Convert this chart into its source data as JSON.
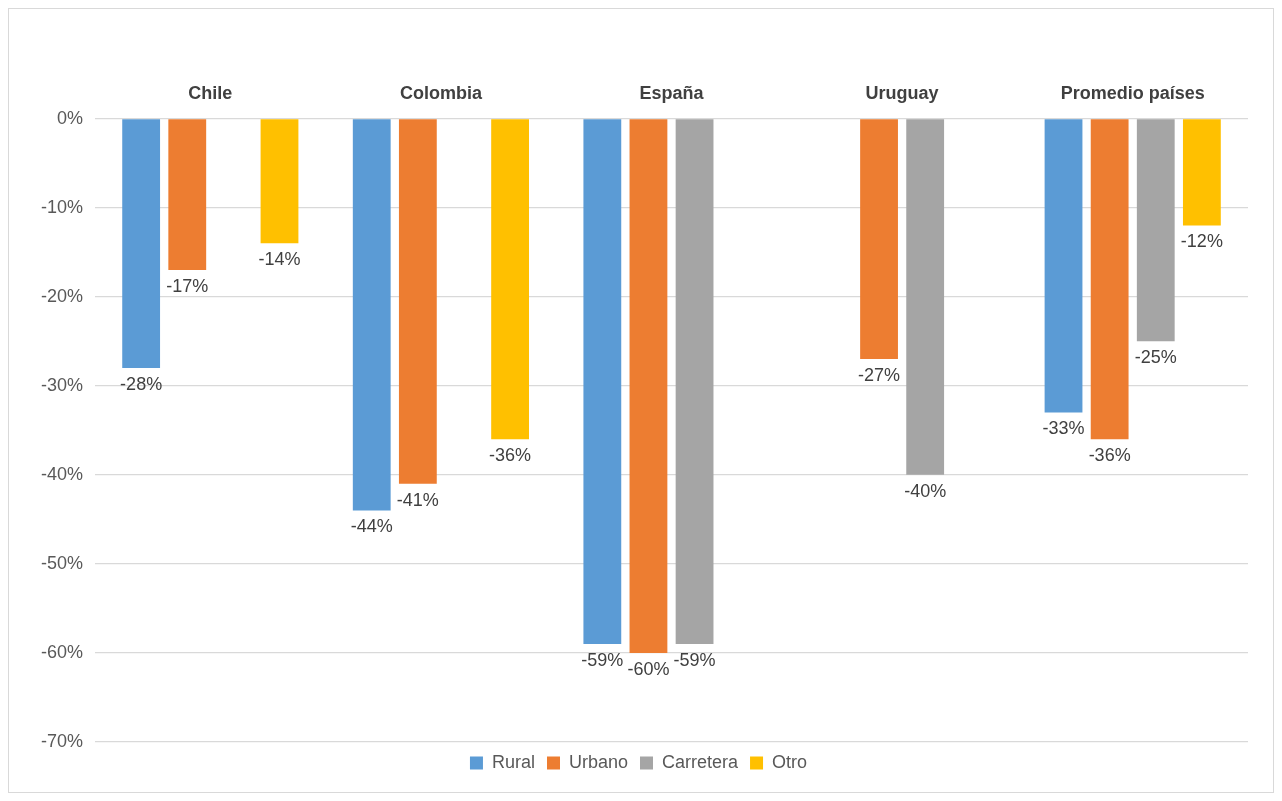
{
  "chart_data": {
    "type": "bar",
    "categories": [
      "Chile",
      "Colombia",
      "España",
      "Uruguay",
      "Promedio países"
    ],
    "series": [
      {
        "name": "Rural",
        "color": "#5b9bd5",
        "values": [
          -28,
          -44,
          -59,
          null,
          -33
        ],
        "value_labels": [
          "-28%",
          "-44%",
          "-59%",
          null,
          "-33%"
        ]
      },
      {
        "name": "Urbano",
        "color": "#ed7d31",
        "values": [
          -17,
          -41,
          -60,
          -27,
          -36
        ],
        "value_labels": [
          "-17%",
          "-41%",
          "-60%",
          "-27%",
          "-36%"
        ]
      },
      {
        "name": "Carretera",
        "color": "#a5a5a5",
        "values": [
          null,
          null,
          -59,
          -40,
          -25
        ],
        "value_labels": [
          null,
          null,
          "-59%",
          "-40%",
          "-25%"
        ]
      },
      {
        "name": "Otro",
        "color": "#ffc000",
        "values": [
          -14,
          -36,
          null,
          null,
          -12
        ],
        "value_labels": [
          "-14%",
          "-36%",
          null,
          null,
          "-12%"
        ]
      }
    ],
    "ylim": [
      -70,
      0
    ],
    "yticks": [
      {
        "value": 0,
        "label": "0%"
      },
      {
        "value": -10,
        "label": "-10%"
      },
      {
        "value": -20,
        "label": "-20%"
      },
      {
        "value": -30,
        "label": "-30%"
      },
      {
        "value": -40,
        "label": "-40%"
      },
      {
        "value": -50,
        "label": "-50%"
      },
      {
        "value": -60,
        "label": "-60%"
      },
      {
        "value": -70,
        "label": "-70%"
      }
    ],
    "grid": "y",
    "legend": "bottom"
  }
}
